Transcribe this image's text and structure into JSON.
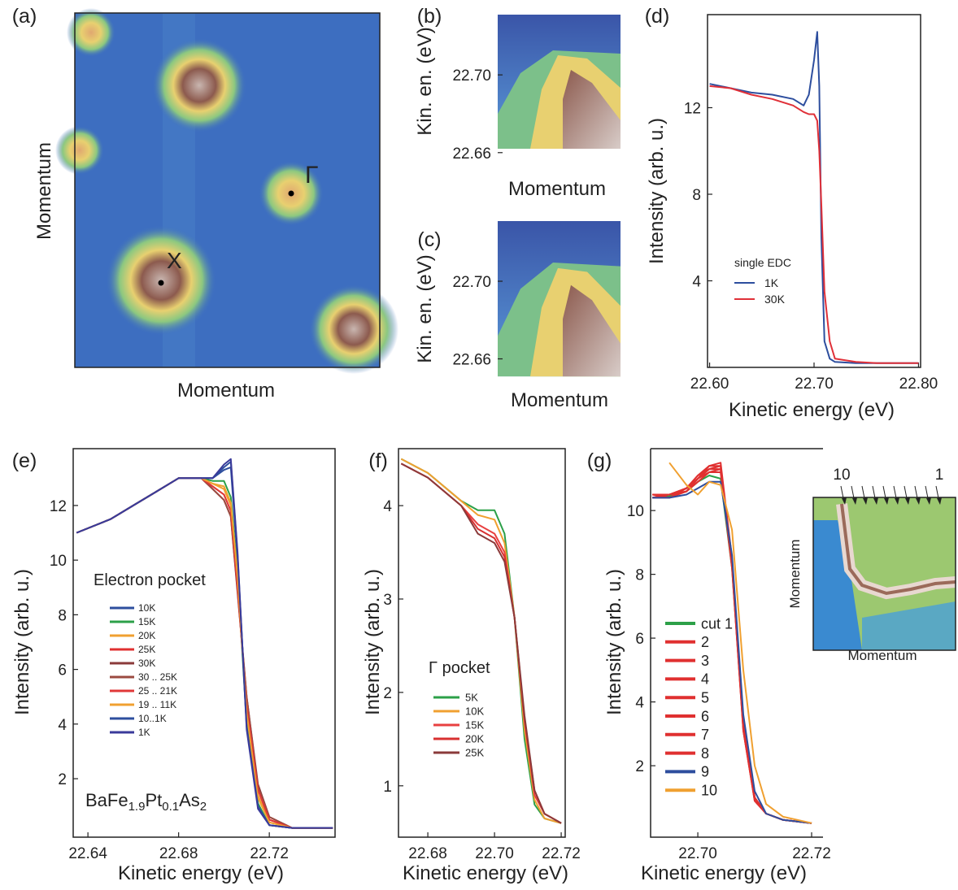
{
  "chart_data": [
    {
      "type": "image",
      "panel_label": "(a)",
      "xlabel": "Momentum",
      "ylabel": "Momentum",
      "annotations": [
        "X",
        "Γ"
      ]
    },
    {
      "type": "image",
      "panel_label": "(b)",
      "xlabel": "Momentum",
      "ylabel": "Kin. en. (eV)",
      "ylim": [
        22.662,
        22.731
      ],
      "yticks": [
        22.66,
        {
          "value": 22.7,
          "label": "22.70"
        }
      ]
    },
    {
      "type": "image",
      "panel_label": "(c)",
      "xlabel": "Momentum",
      "ylabel": "Kin. en. (eV)",
      "ylim": [
        22.651,
        22.731
      ],
      "yticks": [
        22.66,
        {
          "value": 22.7,
          "label": "22.70"
        }
      ]
    },
    {
      "type": "line",
      "panel_label": "(d)",
      "xlabel": "Kinetic energy (eV)",
      "ylabel": "Intensity (arb. u.)",
      "xlim": [
        22.598,
        22.802
      ],
      "ylim": [
        0,
        16.3
      ],
      "xticks": [
        {
          "value": 22.6,
          "label": "22.60"
        },
        {
          "value": 22.7,
          "label": "22.70"
        },
        {
          "value": 22.8,
          "label": "22.80"
        }
      ],
      "yticks": [
        4,
        8,
        12
      ],
      "legend_title": "single EDC",
      "x": [
        22.6,
        22.62,
        22.64,
        22.66,
        22.68,
        22.69,
        22.695,
        22.7,
        22.703,
        22.705,
        22.707,
        22.71,
        22.715,
        22.72,
        22.74,
        22.76,
        22.78,
        22.8
      ],
      "series": [
        {
          "name": "1K",
          "color": "#2d4e9e",
          "values": [
            13.1,
            12.9,
            12.7,
            12.6,
            12.4,
            12.1,
            12.6,
            14.2,
            15.5,
            13,
            6,
            1.2,
            0.4,
            0.25,
            0.2,
            0.2,
            0.2,
            0.2
          ]
        },
        {
          "name": "30K",
          "color": "#e03038",
          "values": [
            13.0,
            12.9,
            12.6,
            12.4,
            12.1,
            11.8,
            11.7,
            11.7,
            11.4,
            10,
            7.5,
            3.5,
            1.2,
            0.4,
            0.25,
            0.2,
            0.2,
            0.2
          ]
        }
      ]
    },
    {
      "type": "line",
      "panel_label": "(e)",
      "xlabel": "Kinetic energy (eV)",
      "ylabel": "Intensity (arb. u.)",
      "xlim": [
        22.6335,
        22.749
      ],
      "ylim": [
        -0.14,
        14.08
      ],
      "xticks": [
        22.64,
        22.68,
        22.72
      ],
      "yticks": [
        2,
        4,
        6,
        8,
        10,
        12
      ],
      "legend_title": "Electron pocket",
      "formula": [
        "BaFe",
        "1.9",
        "Pt",
        "0.1",
        "As",
        "2"
      ],
      "x": [
        22.635,
        22.65,
        22.66,
        22.67,
        22.68,
        22.69,
        22.695,
        22.7,
        22.703,
        22.706,
        22.71,
        22.715,
        22.72,
        22.73,
        22.748
      ],
      "series": [
        {
          "name": "10K",
          "color": "#2d4e9e",
          "values": [
            11,
            11.5,
            12,
            12.5,
            13,
            13,
            13,
            13.3,
            13.4,
            10,
            4,
            1,
            0.3,
            0.2,
            0.2
          ]
        },
        {
          "name": "15K",
          "color": "#2ca048",
          "values": [
            11,
            11.5,
            12,
            12.5,
            13,
            13,
            12.9,
            12.9,
            12.3,
            9.5,
            4,
            1.1,
            0.3,
            0.2,
            0.2
          ]
        },
        {
          "name": "20K",
          "color": "#f0a030",
          "values": [
            11,
            11.5,
            12,
            12.5,
            13,
            13,
            12.8,
            12.6,
            12,
            9.3,
            4.5,
            1.4,
            0.4,
            0.2,
            0.2
          ]
        },
        {
          "name": "25K",
          "color": "#e03030",
          "values": [
            11,
            11.5,
            12,
            12.5,
            13,
            13,
            12.7,
            12.4,
            11.8,
            9,
            4.8,
            1.6,
            0.5,
            0.2,
            0.2
          ]
        },
        {
          "name": "30K",
          "color": "#8b3a3a",
          "values": [
            11,
            11.5,
            12,
            12.5,
            13,
            13,
            12.6,
            12.2,
            11.6,
            8.8,
            5,
            1.8,
            0.6,
            0.2,
            0.2
          ]
        },
        {
          "name": "30 .. 25K",
          "color": "#9b4a40",
          "values": [
            11,
            11.5,
            12,
            12.5,
            13,
            13,
            12.6,
            12.2,
            11.6,
            8.9,
            5,
            1.7,
            0.6,
            0.2,
            0.2
          ]
        },
        {
          "name": "25 .. 21K",
          "color": "#e03838",
          "values": [
            11,
            11.5,
            12,
            12.5,
            13,
            13,
            12.7,
            12.4,
            11.8,
            9,
            4.7,
            1.6,
            0.5,
            0.2,
            0.2
          ]
        },
        {
          "name": "19 .. 11K",
          "color": "#f0a030",
          "values": [
            11,
            11.5,
            12,
            12.5,
            13,
            13,
            12.8,
            12.7,
            12.1,
            9.4,
            4.4,
            1.3,
            0.4,
            0.2,
            0.2
          ]
        },
        {
          "name": "10..1K",
          "color": "#2d4e9e",
          "values": [
            11,
            11.5,
            12,
            12.5,
            13,
            13,
            13,
            13.4,
            13.6,
            10.2,
            3.9,
            1,
            0.3,
            0.2,
            0.2
          ]
        },
        {
          "name": "1K",
          "color": "#3a3a9a",
          "values": [
            11,
            11.5,
            12,
            12.5,
            13,
            13,
            13,
            13.5,
            13.7,
            10.3,
            3.8,
            0.9,
            0.3,
            0.2,
            0.2
          ]
        }
      ]
    },
    {
      "type": "line",
      "panel_label": "(f)",
      "xlabel": "Kinetic energy (eV)",
      "ylabel": "Intensity (arb. u.)",
      "xlim": [
        22.6712,
        22.7212
      ],
      "ylim": [
        0.45,
        4.61
      ],
      "xticks": [
        22.68,
        {
          "value": 22.7,
          "label": "22.70"
        },
        22.72
      ],
      "yticks": [
        1,
        2,
        3,
        4
      ],
      "legend_title": "Γ pocket",
      "x": [
        22.672,
        22.68,
        22.69,
        22.695,
        22.7,
        22.703,
        22.706,
        22.709,
        22.712,
        22.715,
        22.72
      ],
      "series": [
        {
          "name": "5K",
          "color": "#2ca048",
          "values": [
            4.5,
            4.35,
            4.05,
            3.95,
            3.95,
            3.7,
            2.8,
            1.5,
            0.8,
            0.65,
            0.6
          ]
        },
        {
          "name": "10K",
          "color": "#f0a030",
          "values": [
            4.5,
            4.35,
            4.05,
            3.9,
            3.85,
            3.6,
            2.8,
            1.6,
            0.85,
            0.65,
            0.6
          ]
        },
        {
          "name": "15K",
          "color": "#e84040",
          "values": [
            4.45,
            4.3,
            4.0,
            3.8,
            3.7,
            3.5,
            2.8,
            1.7,
            0.9,
            0.7,
            0.6
          ]
        },
        {
          "name": "20K",
          "color": "#d83030",
          "values": [
            4.45,
            4.3,
            4.0,
            3.75,
            3.65,
            3.45,
            2.8,
            1.7,
            0.95,
            0.7,
            0.6
          ]
        },
        {
          "name": "25K",
          "color": "#8b3a3a",
          "values": [
            4.45,
            4.3,
            4.0,
            3.7,
            3.6,
            3.4,
            2.8,
            1.75,
            0.95,
            0.7,
            0.6
          ]
        }
      ]
    },
    {
      "type": "line",
      "panel_label": "(g)",
      "xlabel": "Kinetic energy (eV)",
      "ylabel": "Intensity (arb. u.)",
      "xlim": [
        22.6917,
        22.722
      ],
      "ylim": [
        -0.24,
        11.94
      ],
      "xticks": [
        {
          "value": 22.7,
          "label": "22.70"
        },
        22.72
      ],
      "yticks": [
        2,
        4,
        6,
        8,
        10
      ],
      "inset": {
        "xlabel": "Momentum",
        "ylabel": "Momentum",
        "cut_labels": [
          "10",
          "1"
        ]
      },
      "x": [
        22.692,
        22.695,
        22.698,
        22.7,
        22.702,
        22.704,
        22.706,
        22.708,
        22.71,
        22.712,
        22.715,
        22.72
      ],
      "series": [
        {
          "name": "cut 1",
          "color": "#2ca048",
          "values": [
            10.4,
            10.45,
            10.6,
            10.9,
            11.1,
            11.0,
            8.2,
            3.2,
            1.0,
            0.5,
            0.3,
            0.2
          ]
        },
        {
          "name": "2",
          "color": "#e03030",
          "values": [
            10.5,
            10.5,
            10.7,
            11.0,
            11.3,
            11.4,
            8.4,
            3.3,
            1.0,
            0.5,
            0.3,
            0.2
          ]
        },
        {
          "name": "3",
          "color": "#e03030",
          "values": [
            10.4,
            10.5,
            10.6,
            11.0,
            11.3,
            11.3,
            8.3,
            3.2,
            1.0,
            0.5,
            0.3,
            0.2
          ]
        },
        {
          "name": "4",
          "color": "#e03030",
          "values": [
            10.5,
            10.4,
            10.7,
            11.1,
            11.4,
            11.5,
            8.5,
            3.3,
            1.0,
            0.5,
            0.3,
            0.2
          ]
        },
        {
          "name": "5",
          "color": "#e03030",
          "values": [
            10.4,
            10.5,
            10.6,
            11.0,
            11.2,
            11.3,
            8.3,
            3.1,
            0.9,
            0.5,
            0.3,
            0.2
          ]
        },
        {
          "name": "6",
          "color": "#e03030",
          "values": [
            10.5,
            10.5,
            10.7,
            11.1,
            11.3,
            11.4,
            8.4,
            3.2,
            1.0,
            0.5,
            0.3,
            0.2
          ]
        },
        {
          "name": "7",
          "color": "#e03030",
          "values": [
            10.4,
            10.4,
            10.6,
            10.9,
            11.2,
            11.2,
            8.2,
            3.1,
            0.9,
            0.5,
            0.3,
            0.2
          ]
        },
        {
          "name": "8",
          "color": "#e03030",
          "values": [
            10.5,
            10.5,
            10.7,
            11.0,
            11.4,
            11.4,
            8.4,
            3.3,
            1.0,
            0.5,
            0.3,
            0.2
          ]
        },
        {
          "name": "9",
          "color": "#2d4e9e",
          "values": [
            10.4,
            10.4,
            10.5,
            10.7,
            10.9,
            10.9,
            8.6,
            3.6,
            1.2,
            0.5,
            0.3,
            0.2
          ]
        },
        {
          "name": "10",
          "color": "#f0a030",
          "values": [
            null,
            11.5,
            10.8,
            10.5,
            10.9,
            10.8,
            9.4,
            5.0,
            2.0,
            0.8,
            0.4,
            0.2
          ]
        }
      ]
    }
  ]
}
